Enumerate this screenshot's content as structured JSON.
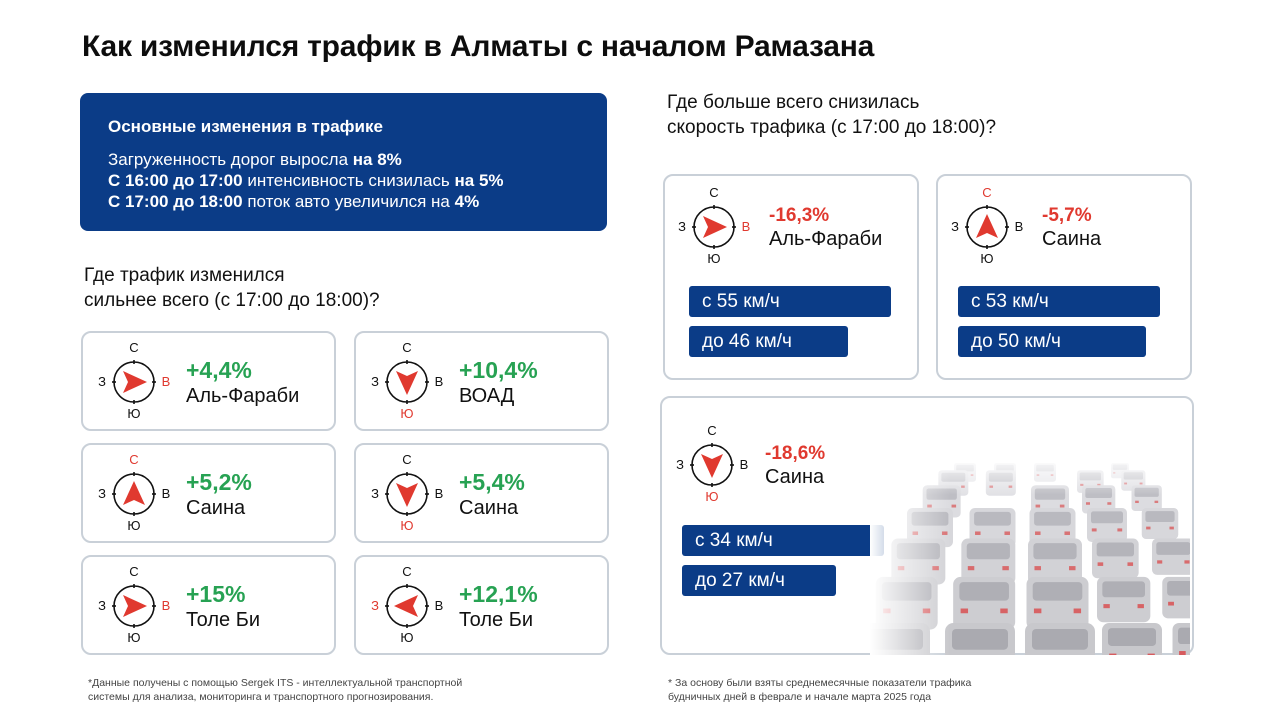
{
  "title": "Как изменился трафик в Алматы с началом Рамазана",
  "summary": {
    "heading": "Основные изменения в трафике",
    "line1": {
      "text": "Загруженность дорог выросла ",
      "bold": "на 8%"
    },
    "line2": {
      "bold1": "С 16:00 до 17:00",
      "text": " интенсивность снизилась ",
      "bold2": "на 5%"
    },
    "line3": {
      "bold1": "С 17:00 до 18:00",
      "text": " поток авто увеличился на ",
      "bold2": "4%"
    }
  },
  "left_section": {
    "title_line1": "Где трафик изменился",
    "title_line2": "сильнее всего (с 17:00 до 18:00)?",
    "cards": [
      {
        "pct": "+4,4%",
        "street": "Аль-Фараби",
        "direction": "east",
        "compass": {
          "n": "С",
          "s": "Ю",
          "w": "З",
          "e": "В"
        }
      },
      {
        "pct": "+10,4%",
        "street": "ВОАД",
        "direction": "south",
        "compass": {
          "n": "С",
          "s": "Ю",
          "w": "З",
          "e": "В"
        }
      },
      {
        "pct": "+5,2%",
        "street": "Саина",
        "direction": "north",
        "compass": {
          "n": "С",
          "s": "Ю",
          "w": "З",
          "e": "В"
        }
      },
      {
        "pct": "+5,4%",
        "street": "Саина",
        "direction": "south",
        "compass": {
          "n": "С",
          "s": "Ю",
          "w": "З",
          "e": "В"
        }
      },
      {
        "pct": "+15%",
        "street": "Толе Би",
        "direction": "east",
        "compass": {
          "n": "С",
          "s": "Ю",
          "w": "З",
          "e": "В"
        }
      },
      {
        "pct": "+12,1%",
        "street": "Толе Би",
        "direction": "west",
        "compass": {
          "n": "С",
          "s": "Ю",
          "w": "З",
          "e": "В"
        }
      }
    ]
  },
  "right_section": {
    "title_line1": "Где больше всего снизилась",
    "title_line2": "скорость трафика (с 17:00 до 18:00)?",
    "cards": [
      {
        "pct": "-16,3%",
        "street": "Аль-Фараби",
        "direction": "east",
        "from": "с 55 км/ч",
        "to": "до 46 км/ч",
        "compass": {
          "n": "С",
          "s": "Ю",
          "w": "З",
          "e": "В"
        }
      },
      {
        "pct": "-5,7%",
        "street": "Саина",
        "direction": "north",
        "from": "с 53 км/ч",
        "to": "до 50 км/ч",
        "compass": {
          "n": "С",
          "s": "Ю",
          "w": "З",
          "e": "В"
        }
      },
      {
        "pct": "-18,6%",
        "street": "Саина",
        "direction": "south",
        "from": "с 34 км/ч",
        "to": "до 27 км/ч",
        "compass": {
          "n": "С",
          "s": "Ю",
          "w": "З",
          "e": "В"
        }
      }
    ]
  },
  "notes": {
    "left_line1": "*Данные получены с помощью Sergek ITS - интеллектуальной транспортной",
    "left_line2": "системы для анализа, мониторинга и транспортного прогнозирования.",
    "right_line1": "* За основу были взяты среднемесячные показатели трафика",
    "right_line2": "будничных дней в феврале и начале марта 2025 года"
  },
  "colors": {
    "brand_blue": "#0b3c87",
    "increase_green": "#27a253",
    "decrease_red": "#e0392f",
    "card_border": "#c9d0d8"
  },
  "icons": [
    "compass-icon",
    "traffic-jam-illustration"
  ]
}
